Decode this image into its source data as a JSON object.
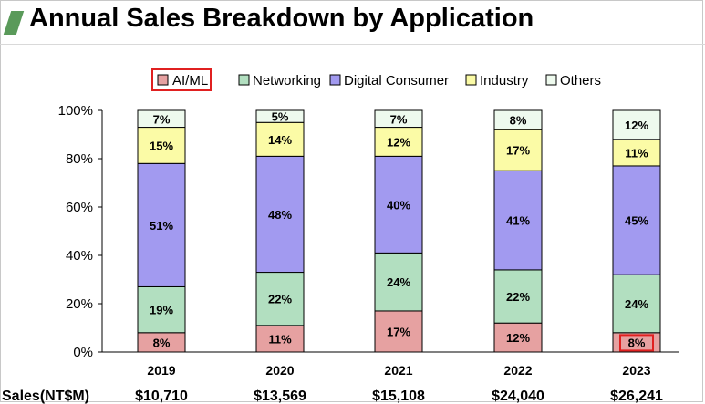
{
  "header": {
    "title": "Annual Sales Breakdown by Application"
  },
  "colors": {
    "ai_ml": "#e6a1a1",
    "networking": "#b2dfc0",
    "digital_consumer": "#a29af0",
    "industry": "#fbfba6",
    "others": "#eefaee",
    "highlight": "#e02020"
  },
  "chart_data": {
    "type": "bar",
    "stacked": true,
    "normalized": true,
    "categories": [
      "2019",
      "2020",
      "2021",
      "2022",
      "2023"
    ],
    "series": [
      {
        "name": "AI/ML",
        "values": [
          8,
          11,
          17,
          12,
          8
        ]
      },
      {
        "name": "Networking",
        "values": [
          19,
          22,
          24,
          22,
          24
        ]
      },
      {
        "name": "Digital Consumer",
        "values": [
          51,
          48,
          40,
          41,
          45
        ]
      },
      {
        "name": "Industry",
        "values": [
          15,
          14,
          12,
          17,
          11
        ]
      },
      {
        "name": "Others",
        "values": [
          7,
          5,
          7,
          8,
          12
        ]
      }
    ],
    "y_ticks": [
      "0%",
      "20%",
      "40%",
      "60%",
      "80%",
      "100%"
    ],
    "ylim": [
      0,
      100
    ],
    "grid": false,
    "legend_position": "top",
    "highlighted": [
      {
        "series": "AI/ML",
        "category": "legend"
      },
      {
        "series": "AI/ML",
        "category": "2023"
      }
    ],
    "sales_row": {
      "label": "Sales(NT$M)",
      "values": [
        "$10,710",
        "$13,569",
        "$15,108",
        "$24,040",
        "$26,241"
      ]
    }
  }
}
